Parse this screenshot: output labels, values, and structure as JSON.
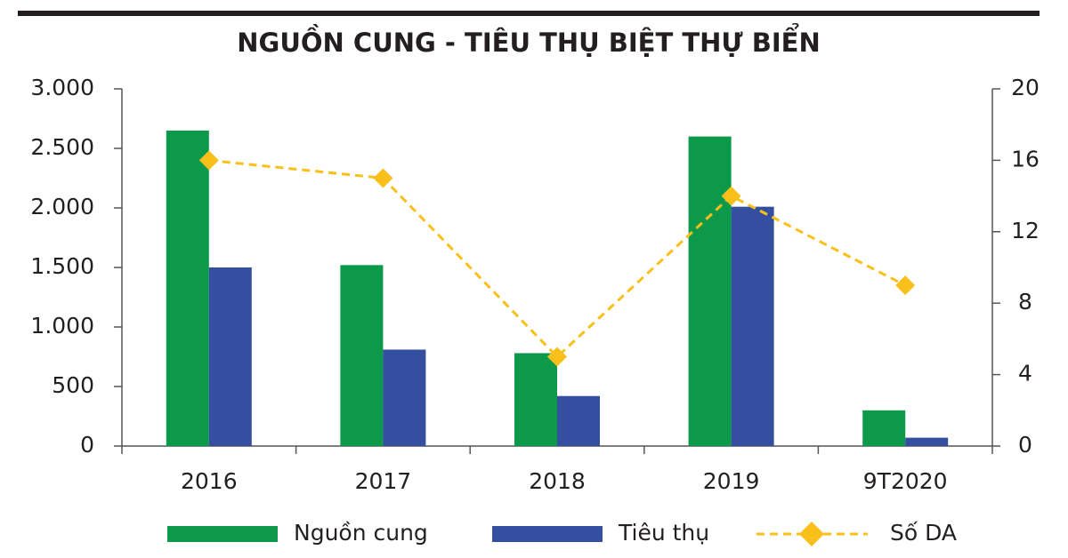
{
  "chart_data": {
    "type": "bar",
    "title": "NGUỒN CUNG - TIÊU THỤ BIỆT THỰ BIỂN",
    "categories": [
      "2016",
      "2017",
      "2018",
      "2019",
      "9T2020"
    ],
    "series": [
      {
        "name": "Nguồn cung",
        "type": "bar",
        "color": "#0c9a4a",
        "values": [
          2650,
          1520,
          780,
          2600,
          300
        ]
      },
      {
        "name": "Tiêu thụ",
        "type": "bar",
        "color": "#344ea0",
        "values": [
          1500,
          810,
          420,
          2010,
          70
        ]
      },
      {
        "name": "Số DA",
        "type": "line",
        "axis": "y2",
        "color": "#f9bf1b",
        "values": [
          16,
          15,
          5,
          14,
          9
        ]
      }
    ],
    "ylim": [
      0,
      3000
    ],
    "yticks": [
      0,
      500,
      {
        "value": 1000,
        "label": "1.000"
      },
      {
        "value": 1500,
        "label": "1.500"
      },
      {
        "value": 2000,
        "label": "2.000"
      },
      {
        "value": 2500,
        "label": "2.500"
      },
      {
        "value": 3000,
        "label": "3.000"
      }
    ],
    "y2lim": [
      0,
      20
    ],
    "y2ticks": [
      0,
      4,
      8,
      12,
      16,
      20
    ],
    "grid": false
  }
}
